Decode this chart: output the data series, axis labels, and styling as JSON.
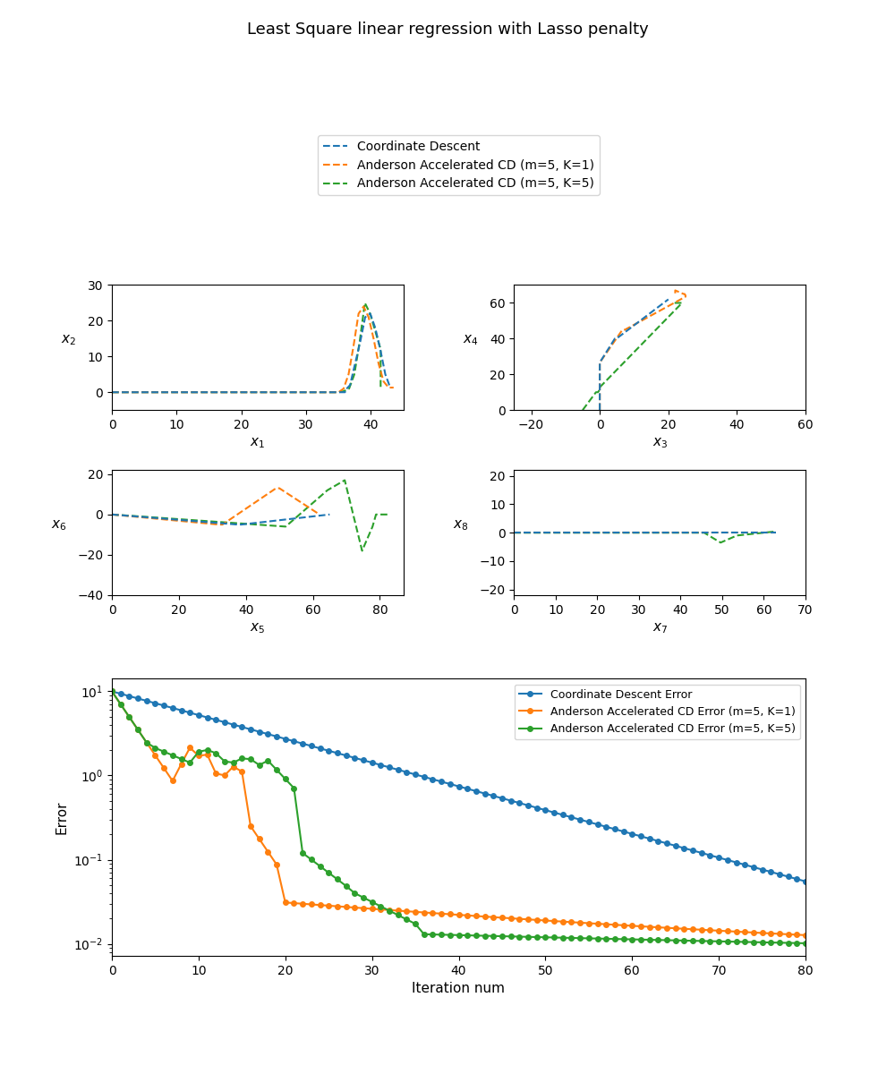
{
  "title": "Least Square linear regression with Lasso penalty",
  "legend_entries": [
    "Coordinate Descent",
    "Anderson Accelerated CD (m=5, K=1)",
    "Anderson Accelerated CD (m=5, K=5)"
  ],
  "colors": {
    "cd": "#1f77b4",
    "aa1": "#ff7f0e",
    "aa5": "#2ca02c"
  },
  "linestyle": "--",
  "xlabels": [
    "x_1",
    "x_3",
    "x_5",
    "x_7"
  ],
  "ylabels": [
    "x_2",
    "x_4",
    "x_6",
    "x_8"
  ],
  "error_xlabel": "Iteration num",
  "error_ylabel": "Error",
  "error_legend": [
    "Coordinate Descent Error",
    "Anderson Accelerated CD Error (m=5, K=1)",
    "Anderson Accelerated CD Error (m=5, K=5)"
  ]
}
